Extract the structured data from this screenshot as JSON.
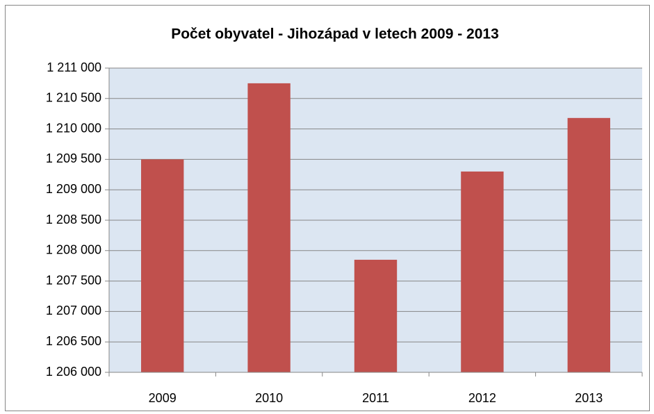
{
  "chart_data": {
    "type": "bar",
    "title": "Počet obyvatel - Jihozápad v letech 2009 - 2013",
    "categories": [
      "2009",
      "2010",
      "2011",
      "2012",
      "2013"
    ],
    "values": [
      1209500,
      1210750,
      1207850,
      1209300,
      1210180
    ],
    "color": "#c0504d",
    "ylim": [
      1206000,
      1211000
    ],
    "yticks": [
      {
        "value": 1206000,
        "label": "1 206 000"
      },
      {
        "value": 1206500,
        "label": "1 206 500"
      },
      {
        "value": 1207000,
        "label": "1 207 000"
      },
      {
        "value": 1207500,
        "label": "1 207 500"
      },
      {
        "value": 1208000,
        "label": "1 208 000"
      },
      {
        "value": 1208500,
        "label": "1 208 500"
      },
      {
        "value": 1209000,
        "label": "1 209 000"
      },
      {
        "value": 1209500,
        "label": "1 209 500"
      },
      {
        "value": 1210000,
        "label": "1 210 000"
      },
      {
        "value": 1210500,
        "label": "1 210 500"
      },
      {
        "value": 1211000,
        "label": "1 211 000"
      }
    ],
    "grid": true
  }
}
